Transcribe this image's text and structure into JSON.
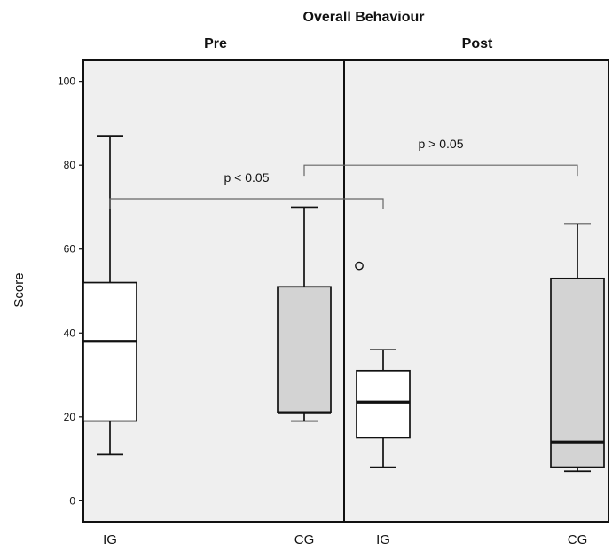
{
  "chart_data": {
    "type": "boxplot",
    "title": "Overall Behaviour",
    "ylabel": "Score",
    "xlabel": "",
    "ylim": [
      -5,
      105
    ],
    "yticks": [
      0,
      20,
      40,
      60,
      80,
      100
    ],
    "panels": [
      {
        "label": "Pre",
        "categories": [
          "IG",
          "CG"
        ],
        "boxes": [
          {
            "category": "IG",
            "min": 11,
            "q1": 19,
            "median": 38,
            "q3": 52,
            "max": 87,
            "outliers": [],
            "fill": "#ffffff"
          },
          {
            "category": "CG",
            "min": 19,
            "q1": 21,
            "median": 21,
            "q3": 51,
            "max": 70,
            "outliers": [],
            "fill": "#d3d3d3"
          }
        ]
      },
      {
        "label": "Post",
        "categories": [
          "IG",
          "CG"
        ],
        "boxes": [
          {
            "category": "IG",
            "min": 8,
            "q1": 15,
            "median": 23.5,
            "q3": 31,
            "max": 36,
            "outliers": [
              56
            ],
            "fill": "#ffffff"
          },
          {
            "category": "CG",
            "min": 7,
            "q1": 8,
            "median": 14,
            "q3": 53,
            "max": 66,
            "outliers": [],
            "fill": "#d3d3d3"
          }
        ]
      }
    ],
    "annotations": [
      {
        "text": "p < 0.05",
        "from": "Pre IG",
        "to": "Post IG",
        "level": 72
      },
      {
        "text": "p > 0.05",
        "from": "Pre CG",
        "to": "Post CG",
        "level": 80
      }
    ],
    "grid": false,
    "legend": "none",
    "colors": {
      "plot_background": "#efefef",
      "ig_box": "#ffffff",
      "cg_box": "#d3d3d3",
      "line": "#111111",
      "annotation_line": "#666666"
    }
  }
}
